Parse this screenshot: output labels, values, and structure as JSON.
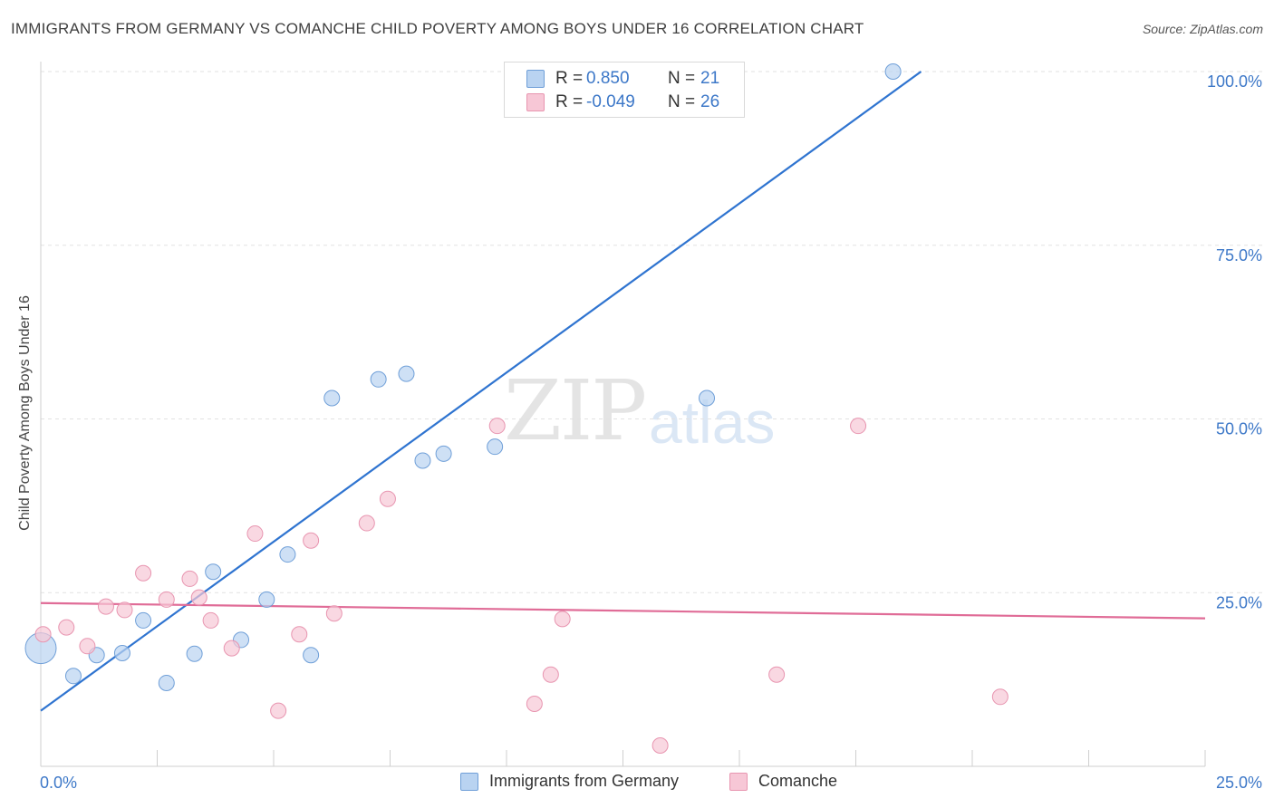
{
  "title": "IMMIGRANTS FROM GERMANY VS COMANCHE CHILD POVERTY AMONG BOYS UNDER 16 CORRELATION CHART",
  "source": "Source: ZipAtlas.com",
  "watermark": {
    "zip": "ZIP",
    "atlas": "atlas"
  },
  "colors": {
    "blue_fill": "#b9d3f1",
    "blue_stroke": "#6f9fd8",
    "blue_line": "#2f74d0",
    "pink_fill": "#f7c7d6",
    "pink_stroke": "#e895b0",
    "pink_line": "#e06c97",
    "tick_label": "#3d78c8",
    "grid": "#e2e2e2"
  },
  "legend": {
    "rows": [
      {
        "r_label": "R =",
        "r_value": "0.850",
        "n_label": "N =",
        "n_value": "21",
        "series": "blue"
      },
      {
        "r_label": "R =",
        "r_value": "-0.049",
        "n_label": "N =",
        "n_value": "26",
        "series": "pink"
      }
    ]
  },
  "bottom_legend": [
    {
      "label": "Immigrants from Germany",
      "series": "blue"
    },
    {
      "label": "Comanche",
      "series": "pink"
    }
  ],
  "chart_data": {
    "type": "scatter",
    "xlabel": "",
    "ylabel": "Child Poverty Among Boys Under 16",
    "xlim": [
      0,
      25
    ],
    "ylim": [
      0,
      100
    ],
    "x_tick_labels": [
      {
        "value": 0,
        "label": "0.0%"
      },
      {
        "value": 25,
        "label": "25.0%"
      }
    ],
    "y_tick_labels": [
      {
        "value": 25,
        "label": "25.0%"
      },
      {
        "value": 50,
        "label": "50.0%"
      },
      {
        "value": 75,
        "label": "75.0%"
      },
      {
        "value": 100,
        "label": "100.0%"
      }
    ],
    "grid": true,
    "legend_position": "top-center",
    "series": [
      {
        "name": "Immigrants from Germany",
        "color": "blue",
        "points": [
          {
            "x": 0.0,
            "y": 17.0,
            "big": true
          },
          {
            "x": 0.7,
            "y": 13.0
          },
          {
            "x": 1.2,
            "y": 16.0
          },
          {
            "x": 1.75,
            "y": 16.3
          },
          {
            "x": 2.2,
            "y": 21.0
          },
          {
            "x": 2.7,
            "y": 12.0
          },
          {
            "x": 3.3,
            "y": 16.2
          },
          {
            "x": 3.7,
            "y": 28.0
          },
          {
            "x": 4.3,
            "y": 18.2
          },
          {
            "x": 4.85,
            "y": 24.0
          },
          {
            "x": 5.3,
            "y": 30.5
          },
          {
            "x": 5.8,
            "y": 16.0
          },
          {
            "x": 6.25,
            "y": 53.0
          },
          {
            "x": 7.25,
            "y": 55.7
          },
          {
            "x": 7.85,
            "y": 56.5
          },
          {
            "x": 8.2,
            "y": 44.0
          },
          {
            "x": 8.65,
            "y": 45.0
          },
          {
            "x": 9.75,
            "y": 46.0
          },
          {
            "x": 10.3,
            "y": 100.0
          },
          {
            "x": 14.3,
            "y": 53.0
          },
          {
            "x": 18.3,
            "y": 100.0
          }
        ],
        "trend": {
          "x": [
            0,
            18.9
          ],
          "y": [
            8.0,
            100.0
          ]
        }
      },
      {
        "name": "Comanche",
        "color": "pink",
        "points": [
          {
            "x": 0.05,
            "y": 19.0
          },
          {
            "x": 0.55,
            "y": 20.0
          },
          {
            "x": 1.0,
            "y": 17.3
          },
          {
            "x": 1.4,
            "y": 23.0
          },
          {
            "x": 1.8,
            "y": 22.5
          },
          {
            "x": 2.2,
            "y": 27.8
          },
          {
            "x": 2.7,
            "y": 24.0
          },
          {
            "x": 3.2,
            "y": 27.0
          },
          {
            "x": 3.4,
            "y": 24.3
          },
          {
            "x": 3.65,
            "y": 21.0
          },
          {
            "x": 4.1,
            "y": 17.0
          },
          {
            "x": 4.6,
            "y": 33.5
          },
          {
            "x": 5.1,
            "y": 8.0
          },
          {
            "x": 5.55,
            "y": 19.0
          },
          {
            "x": 5.8,
            "y": 32.5
          },
          {
            "x": 6.3,
            "y": 22.0
          },
          {
            "x": 7.0,
            "y": 35.0
          },
          {
            "x": 7.45,
            "y": 38.5
          },
          {
            "x": 9.8,
            "y": 49.0
          },
          {
            "x": 10.6,
            "y": 9.0
          },
          {
            "x": 10.95,
            "y": 13.2
          },
          {
            "x": 11.2,
            "y": 21.2
          },
          {
            "x": 13.3,
            "y": 3.0
          },
          {
            "x": 15.8,
            "y": 13.2
          },
          {
            "x": 17.55,
            "y": 49.0
          },
          {
            "x": 20.6,
            "y": 10.0
          }
        ],
        "trend": {
          "x": [
            0,
            25
          ],
          "y": [
            23.5,
            21.3
          ]
        }
      }
    ]
  }
}
